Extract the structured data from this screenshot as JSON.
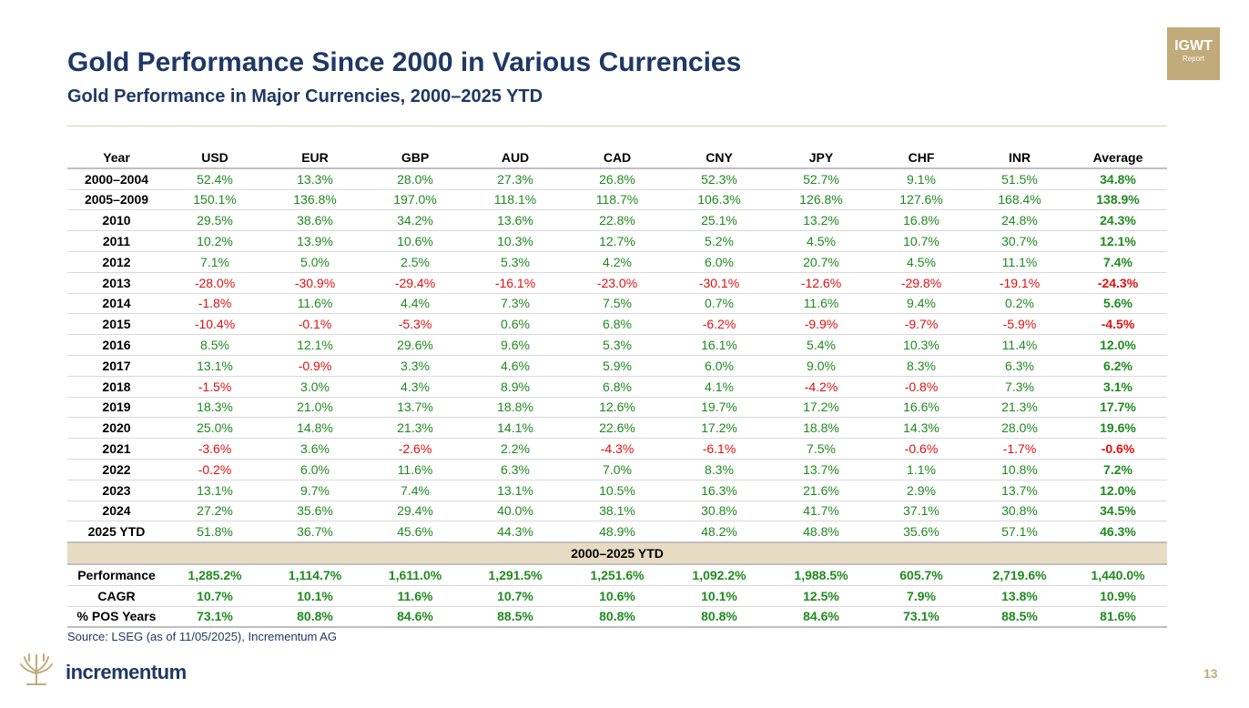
{
  "header": {
    "title": "Gold Performance Since 2000 in Various Currencies",
    "subtitle": "Gold Performance in Major Currencies, 2000–2025 YTD",
    "badge_top": "IGWT",
    "badge_bottom": "Report"
  },
  "table": {
    "columns": [
      "Year",
      "USD",
      "EUR",
      "GBP",
      "AUD",
      "CAD",
      "CNY",
      "JPY",
      "CHF",
      "INR",
      "Average"
    ],
    "rows": [
      [
        "2000–2004",
        "52.4%",
        "13.3%",
        "28.0%",
        "27.3%",
        "26.8%",
        "52.3%",
        "52.7%",
        "9.1%",
        "51.5%",
        "34.8%"
      ],
      [
        "2005–2009",
        "150.1%",
        "136.8%",
        "197.0%",
        "118.1%",
        "118.7%",
        "106.3%",
        "126.8%",
        "127.6%",
        "168.4%",
        "138.9%"
      ],
      [
        "2010",
        "29.5%",
        "38.6%",
        "34.2%",
        "13.6%",
        "22.8%",
        "25.1%",
        "13.2%",
        "16.8%",
        "24.8%",
        "24.3%"
      ],
      [
        "2011",
        "10.2%",
        "13.9%",
        "10.6%",
        "10.3%",
        "12.7%",
        "5.2%",
        "4.5%",
        "10.7%",
        "30.7%",
        "12.1%"
      ],
      [
        "2012",
        "7.1%",
        "5.0%",
        "2.5%",
        "5.3%",
        "4.2%",
        "6.0%",
        "20.7%",
        "4.5%",
        "11.1%",
        "7.4%"
      ],
      [
        "2013",
        "-28.0%",
        "-30.9%",
        "-29.4%",
        "-16.1%",
        "-23.0%",
        "-30.1%",
        "-12.6%",
        "-29.8%",
        "-19.1%",
        "-24.3%"
      ],
      [
        "2014",
        "-1.8%",
        "11.6%",
        "4.4%",
        "7.3%",
        "7.5%",
        "0.7%",
        "11.6%",
        "9.4%",
        "0.2%",
        "5.6%"
      ],
      [
        "2015",
        "-10.4%",
        "-0.1%",
        "-5.3%",
        "0.6%",
        "6.8%",
        "-6.2%",
        "-9.9%",
        "-9.7%",
        "-5.9%",
        "-4.5%"
      ],
      [
        "2016",
        "8.5%",
        "12.1%",
        "29.6%",
        "9.6%",
        "5.3%",
        "16.1%",
        "5.4%",
        "10.3%",
        "11.4%",
        "12.0%"
      ],
      [
        "2017",
        "13.1%",
        "-0.9%",
        "3.3%",
        "4.6%",
        "5.9%",
        "6.0%",
        "9.0%",
        "8.3%",
        "6.3%",
        "6.2%"
      ],
      [
        "2018",
        "-1.5%",
        "3.0%",
        "4.3%",
        "8.9%",
        "6.8%",
        "4.1%",
        "-4.2%",
        "-0.8%",
        "7.3%",
        "3.1%"
      ],
      [
        "2019",
        "18.3%",
        "21.0%",
        "13.7%",
        "18.8%",
        "12.6%",
        "19.7%",
        "17.2%",
        "16.6%",
        "21.3%",
        "17.7%"
      ],
      [
        "2020",
        "25.0%",
        "14.8%",
        "21.3%",
        "14.1%",
        "22.6%",
        "17.2%",
        "18.8%",
        "14.3%",
        "28.0%",
        "19.6%"
      ],
      [
        "2021",
        "-3.6%",
        "3.6%",
        "-2.6%",
        "2.2%",
        "-4.3%",
        "-6.1%",
        "7.5%",
        "-0.6%",
        "-1.7%",
        "-0.6%"
      ],
      [
        "2022",
        "-0.2%",
        "6.0%",
        "11.6%",
        "6.3%",
        "7.0%",
        "8.3%",
        "13.7%",
        "1.1%",
        "10.8%",
        "7.2%"
      ],
      [
        "2023",
        "13.1%",
        "9.7%",
        "7.4%",
        "13.1%",
        "10.5%",
        "16.3%",
        "21.6%",
        "2.9%",
        "13.7%",
        "12.0%"
      ],
      [
        "2024",
        "27.2%",
        "35.6%",
        "29.4%",
        "40.0%",
        "38.1%",
        "30.8%",
        "41.7%",
        "37.1%",
        "30.8%",
        "34.5%"
      ],
      [
        "2025 YTD",
        "51.8%",
        "36.7%",
        "45.6%",
        "44.3%",
        "48.9%",
        "48.2%",
        "48.8%",
        "35.6%",
        "57.1%",
        "46.3%"
      ]
    ],
    "section_label": "2000–2025 YTD",
    "summary_rows": [
      [
        "Performance",
        "1,285.2%",
        "1,114.7%",
        "1,611.0%",
        "1,291.5%",
        "1,251.6%",
        "1,092.2%",
        "1,988.5%",
        "605.7%",
        "2,719.6%",
        "1,440.0%"
      ],
      [
        "CAGR",
        "10.7%",
        "10.1%",
        "11.6%",
        "10.7%",
        "10.6%",
        "10.1%",
        "12.5%",
        "7.9%",
        "13.8%",
        "10.9%"
      ],
      [
        "% POS Years",
        "73.1%",
        "80.8%",
        "84.6%",
        "88.5%",
        "80.8%",
        "80.8%",
        "84.6%",
        "73.1%",
        "88.5%",
        "81.6%"
      ]
    ]
  },
  "footer": {
    "source": "Source: LSEG (as of 11/05/2025), Incrementum AG",
    "brand": "incrementum",
    "page_number": "13"
  },
  "colors": {
    "title": "#1f3864",
    "accent": "#c2ab7a",
    "positive": "#1f8a1f",
    "negative": "#e01010"
  }
}
